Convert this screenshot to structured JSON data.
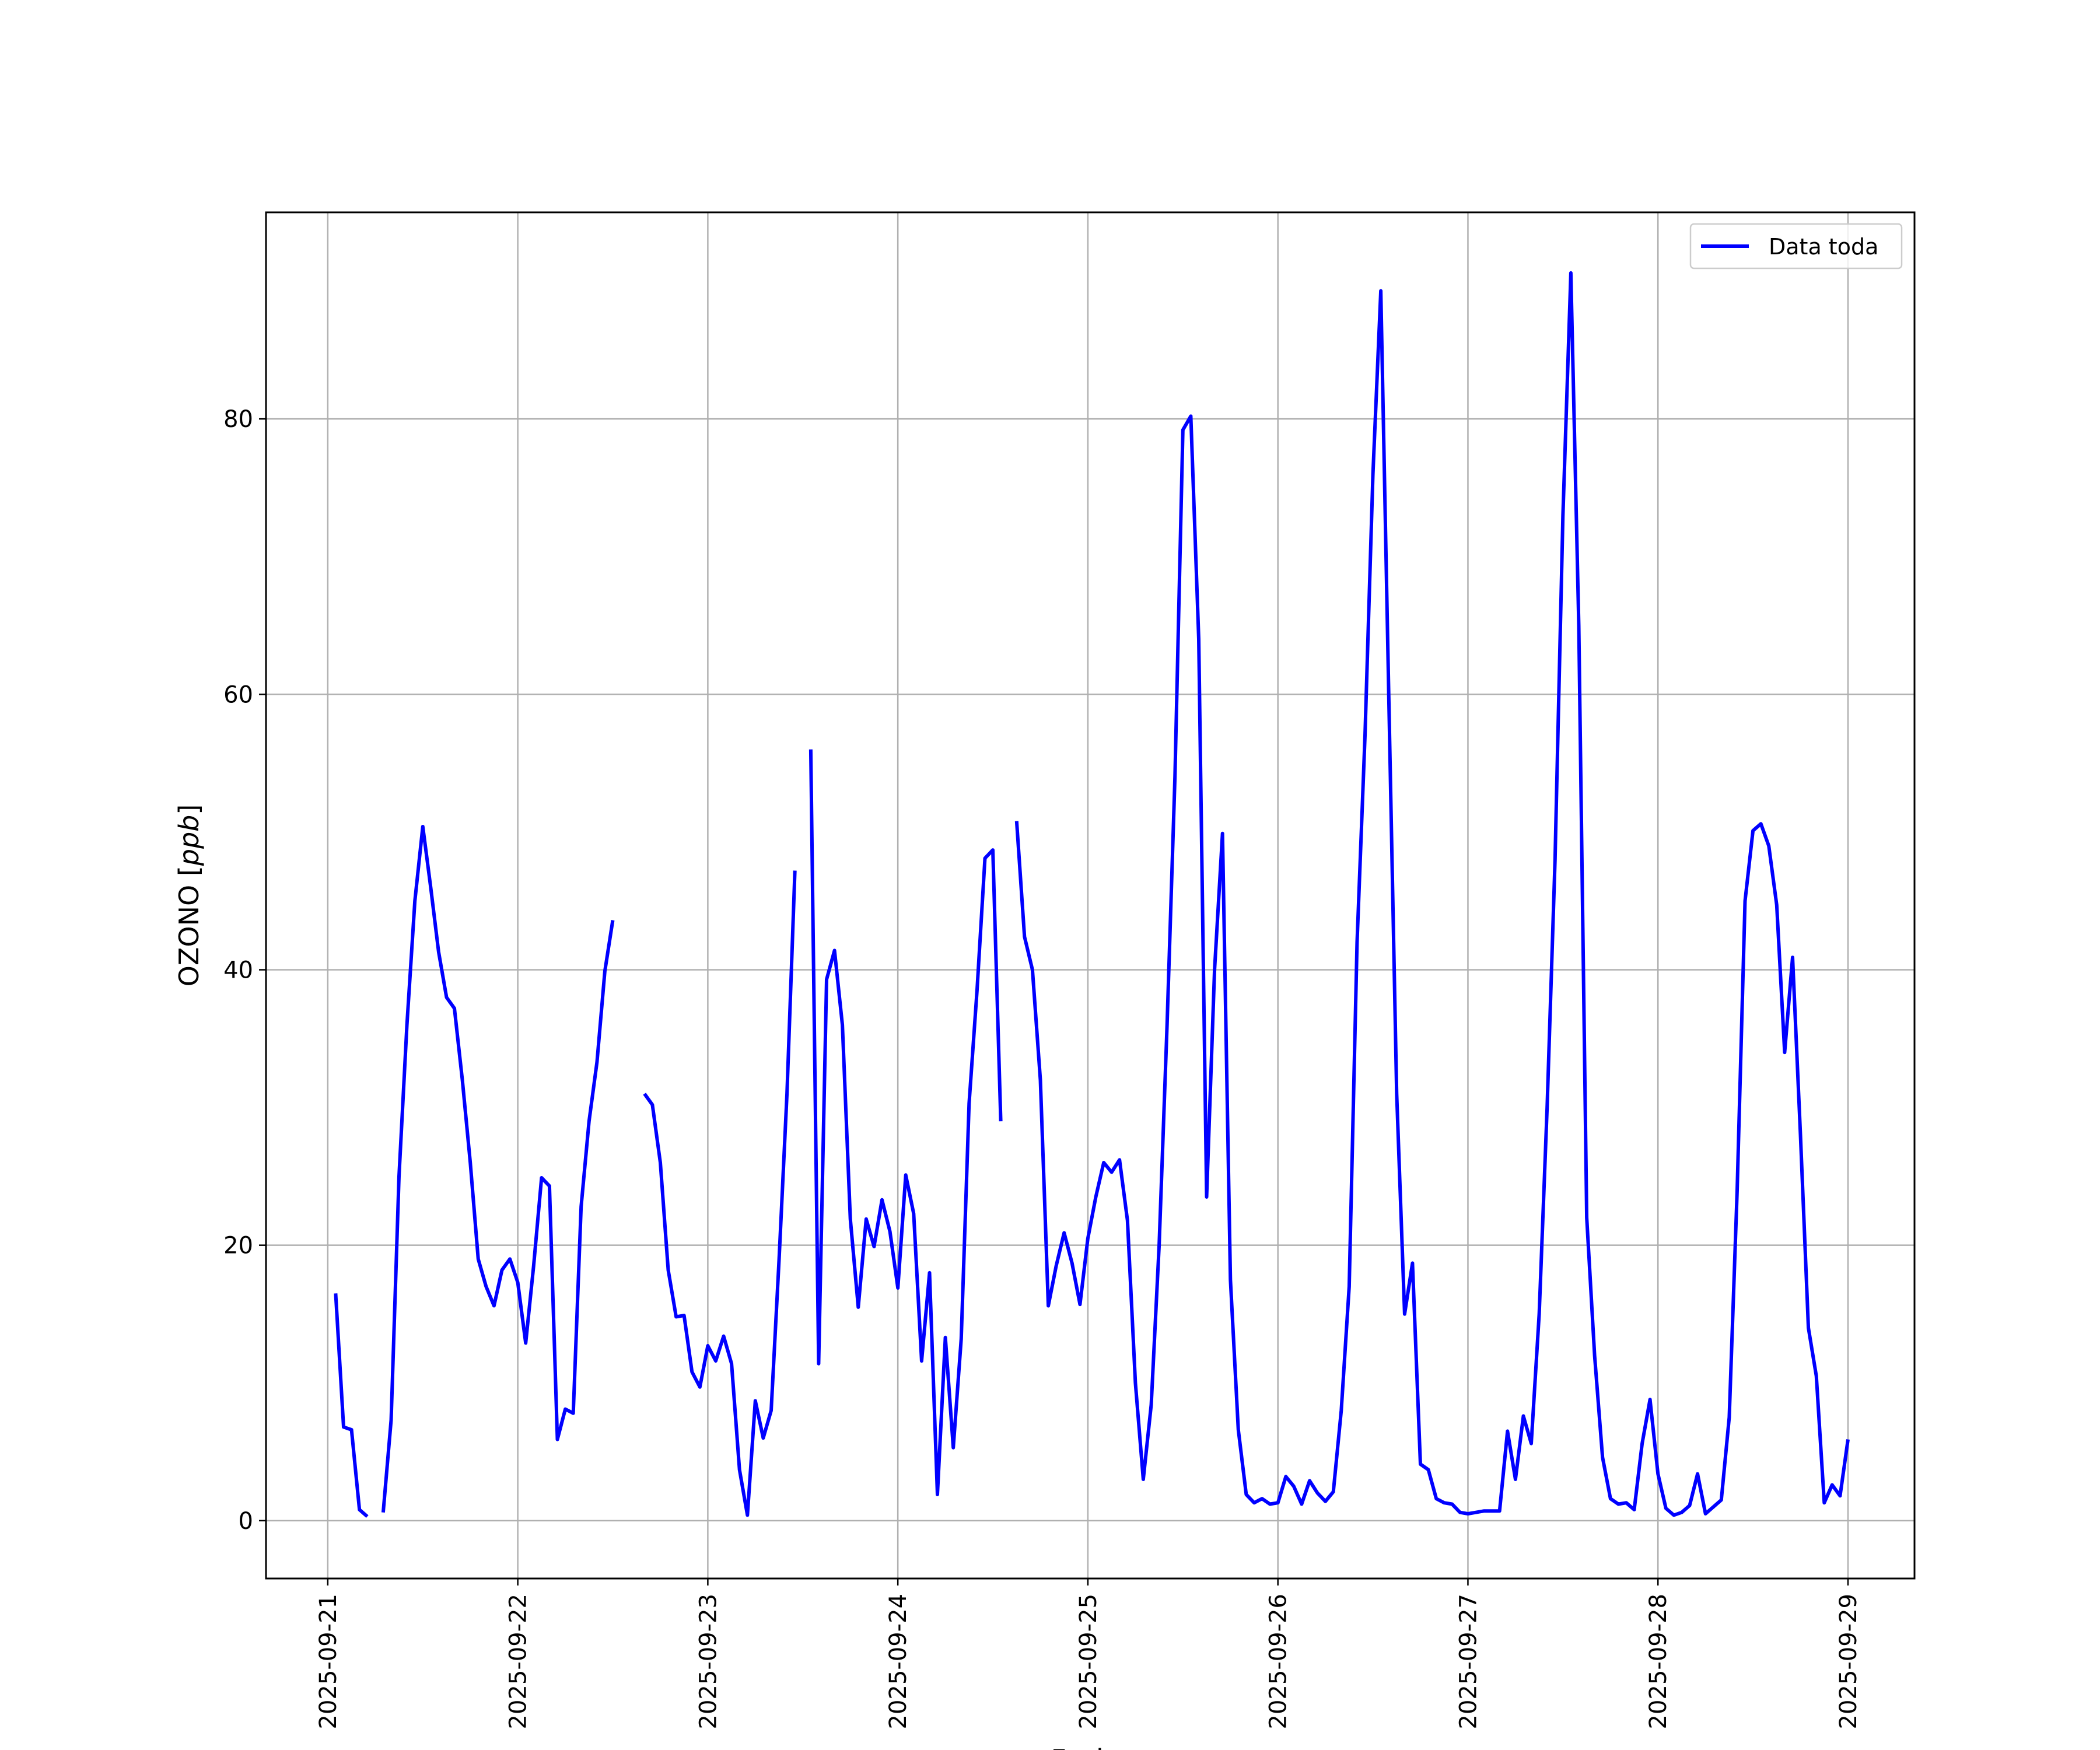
{
  "chart_data": {
    "type": "line",
    "title": "",
    "xlabel": "Fecha",
    "ylabel": "OZONO [ppb]",
    "ylabel_text": "OZONO",
    "ylabel_unit": "ppb",
    "grid": true,
    "legend_position": "top-right",
    "xlim": [
      "2025-09-20 16:12",
      "2025-09-29 08:24"
    ],
    "ylim": [
      -4.2,
      95.0
    ],
    "x_ticks": [
      "2025-09-21",
      "2025-09-22",
      "2025-09-23",
      "2025-09-24",
      "2025-09-25",
      "2025-09-26",
      "2025-09-27",
      "2025-09-28",
      "2025-09-29"
    ],
    "y_ticks": [
      0,
      20,
      40,
      60,
      80
    ],
    "series": [
      {
        "name": "Data toda",
        "color": "#0000ff",
        "points": [
          [
            "2025-09-21 01:00",
            16.5
          ],
          [
            "2025-09-21 02:00",
            6.8
          ],
          [
            "2025-09-21 03:00",
            6.6
          ],
          [
            "2025-09-21 04:00",
            0.8
          ],
          [
            "2025-09-21 05:00",
            0.3
          ],
          [
            "2025-09-21 07:00",
            0.6
          ],
          [
            "2025-09-21 08:00",
            7.3
          ],
          [
            "2025-09-21 09:00",
            25.0
          ],
          [
            "2025-09-21 10:00",
            36.0
          ],
          [
            "2025-09-21 11:00",
            45.0
          ],
          [
            "2025-09-21 12:00",
            50.4
          ],
          [
            "2025-09-21 13:00",
            46.0
          ],
          [
            "2025-09-21 14:00",
            41.3
          ],
          [
            "2025-09-21 15:00",
            38.0
          ],
          [
            "2025-09-21 16:00",
            37.2
          ],
          [
            "2025-09-21 17:00",
            32.0
          ],
          [
            "2025-09-21 18:00",
            26.0
          ],
          [
            "2025-09-21 19:00",
            19.0
          ],
          [
            "2025-09-21 20:00",
            17.0
          ],
          [
            "2025-09-21 21:00",
            15.6
          ],
          [
            "2025-09-21 22:00",
            18.2
          ],
          [
            "2025-09-21 23:00",
            19.0
          ],
          [
            "2025-09-22 00:00",
            17.3
          ],
          [
            "2025-09-22 01:00",
            12.9
          ],
          [
            "2025-09-22 02:00",
            18.5
          ],
          [
            "2025-09-22 03:00",
            24.9
          ],
          [
            "2025-09-22 04:00",
            24.3
          ],
          [
            "2025-09-22 05:00",
            5.9
          ],
          [
            "2025-09-22 06:00",
            8.1
          ],
          [
            "2025-09-22 07:00",
            7.8
          ],
          [
            "2025-09-22 08:00",
            22.8
          ],
          [
            "2025-09-22 09:00",
            29.0
          ],
          [
            "2025-09-22 10:00",
            33.3
          ],
          [
            "2025-09-22 11:00",
            39.9
          ],
          [
            "2025-09-22 12:00",
            43.6
          ],
          [
            "2025-09-22 16:00",
            31.0
          ],
          [
            "2025-09-22 17:00",
            30.2
          ],
          [
            "2025-09-22 18:00",
            26.0
          ],
          [
            "2025-09-22 19:00",
            18.2
          ],
          [
            "2025-09-22 20:00",
            14.8
          ],
          [
            "2025-09-22 21:00",
            14.9
          ],
          [
            "2025-09-22 22:00",
            10.8
          ],
          [
            "2025-09-22 23:00",
            9.7
          ],
          [
            "2025-09-23 00:00",
            12.7
          ],
          [
            "2025-09-23 01:00",
            11.6
          ],
          [
            "2025-09-23 02:00",
            13.4
          ],
          [
            "2025-09-23 03:00",
            11.4
          ],
          [
            "2025-09-23 04:00",
            3.7
          ],
          [
            "2025-09-23 05:00",
            0.4
          ],
          [
            "2025-09-23 06:00",
            8.7
          ],
          [
            "2025-09-23 07:00",
            6.0
          ],
          [
            "2025-09-23 08:00",
            8.0
          ],
          [
            "2025-09-23 09:00",
            19.0
          ],
          [
            "2025-09-23 10:00",
            31.0
          ],
          [
            "2025-09-23 11:00",
            47.2
          ],
          [
            "2025-09-23 13:00",
            56.0
          ],
          [
            "2025-09-23 14:00",
            11.4
          ],
          [
            "2025-09-23 15:00",
            39.3
          ],
          [
            "2025-09-23 16:00",
            41.4
          ],
          [
            "2025-09-23 17:00",
            36.0
          ],
          [
            "2025-09-23 18:00",
            21.9
          ],
          [
            "2025-09-23 19:00",
            15.5
          ],
          [
            "2025-09-23 20:00",
            21.9
          ],
          [
            "2025-09-23 21:00",
            19.9
          ],
          [
            "2025-09-23 22:00",
            23.3
          ],
          [
            "2025-09-23 23:00",
            21.0
          ],
          [
            "2025-09-24 00:00",
            16.9
          ],
          [
            "2025-09-24 01:00",
            25.1
          ],
          [
            "2025-09-24 02:00",
            22.3
          ],
          [
            "2025-09-24 03:00",
            11.6
          ],
          [
            "2025-09-24 04:00",
            18.0
          ],
          [
            "2025-09-24 05:00",
            1.9
          ],
          [
            "2025-09-24 06:00",
            13.3
          ],
          [
            "2025-09-24 07:00",
            5.3
          ],
          [
            "2025-09-24 08:00",
            13.2
          ],
          [
            "2025-09-24 09:00",
            30.3
          ],
          [
            "2025-09-24 10:00",
            38.5
          ],
          [
            "2025-09-24 11:00",
            48.1
          ],
          [
            "2025-09-24 12:00",
            48.7
          ],
          [
            "2025-09-24 13:00",
            29.0
          ],
          [
            "2025-09-24 15:00",
            50.8
          ],
          [
            "2025-09-24 16:00",
            42.4
          ],
          [
            "2025-09-24 17:00",
            40.0
          ],
          [
            "2025-09-24 18:00",
            32.0
          ],
          [
            "2025-09-24 19:00",
            15.6
          ],
          [
            "2025-09-24 20:00",
            18.5
          ],
          [
            "2025-09-24 21:00",
            20.9
          ],
          [
            "2025-09-24 22:00",
            18.7
          ],
          [
            "2025-09-24 23:00",
            15.7
          ],
          [
            "2025-09-25 00:00",
            20.5
          ],
          [
            "2025-09-25 01:00",
            23.5
          ],
          [
            "2025-09-25 02:00",
            26.0
          ],
          [
            "2025-09-25 03:00",
            25.3
          ],
          [
            "2025-09-25 04:00",
            26.2
          ],
          [
            "2025-09-25 05:00",
            21.8
          ],
          [
            "2025-09-25 06:00",
            10.0
          ],
          [
            "2025-09-25 07:00",
            3.0
          ],
          [
            "2025-09-25 08:00",
            8.4
          ],
          [
            "2025-09-25 09:00",
            20.0
          ],
          [
            "2025-09-25 10:00",
            36.0
          ],
          [
            "2025-09-25 11:00",
            54.0
          ],
          [
            "2025-09-25 12:00",
            79.2
          ],
          [
            "2025-09-25 13:00",
            80.2
          ],
          [
            "2025-09-25 14:00",
            64.0
          ],
          [
            "2025-09-25 15:00",
            23.5
          ],
          [
            "2025-09-25 16:00",
            40.0
          ],
          [
            "2025-09-25 17:00",
            49.9
          ],
          [
            "2025-09-25 18:00",
            17.5
          ],
          [
            "2025-09-25 19:00",
            6.6
          ],
          [
            "2025-09-25 20:00",
            1.9
          ],
          [
            "2025-09-25 21:00",
            1.3
          ],
          [
            "2025-09-25 22:00",
            1.6
          ],
          [
            "2025-09-25 23:00",
            1.2
          ],
          [
            "2025-09-26 00:00",
            1.3
          ],
          [
            "2025-09-26 01:00",
            3.2
          ],
          [
            "2025-09-26 02:00",
            2.5
          ],
          [
            "2025-09-26 03:00",
            1.2
          ],
          [
            "2025-09-26 04:00",
            2.9
          ],
          [
            "2025-09-26 05:00",
            2.0
          ],
          [
            "2025-09-26 06:00",
            1.4
          ],
          [
            "2025-09-26 07:00",
            2.1
          ],
          [
            "2025-09-26 08:00",
            8.0
          ],
          [
            "2025-09-26 09:00",
            17.0
          ],
          [
            "2025-09-26 10:00",
            42.0
          ],
          [
            "2025-09-26 11:00",
            57.0
          ],
          [
            "2025-09-26 12:00",
            76.0
          ],
          [
            "2025-09-26 13:00",
            89.3
          ],
          [
            "2025-09-26 14:00",
            60.0
          ],
          [
            "2025-09-26 15:00",
            31.0
          ],
          [
            "2025-09-26 16:00",
            15.0
          ],
          [
            "2025-09-26 17:00",
            18.7
          ],
          [
            "2025-09-26 18:00",
            4.1
          ],
          [
            "2025-09-26 19:00",
            3.7
          ],
          [
            "2025-09-26 20:00",
            1.6
          ],
          [
            "2025-09-26 21:00",
            1.3
          ],
          [
            "2025-09-26 22:00",
            1.2
          ],
          [
            "2025-09-26 23:00",
            0.6
          ],
          [
            "2025-09-27 00:00",
            0.5
          ],
          [
            "2025-09-27 01:00",
            0.6
          ],
          [
            "2025-09-27 02:00",
            0.7
          ],
          [
            "2025-09-27 03:00",
            0.7
          ],
          [
            "2025-09-27 04:00",
            0.7
          ],
          [
            "2025-09-27 05:00",
            6.5
          ],
          [
            "2025-09-27 06:00",
            3.0
          ],
          [
            "2025-09-27 07:00",
            7.6
          ],
          [
            "2025-09-27 08:00",
            5.6
          ],
          [
            "2025-09-27 09:00",
            15.0
          ],
          [
            "2025-09-27 10:00",
            30.0
          ],
          [
            "2025-09-27 11:00",
            48.0
          ],
          [
            "2025-09-27 12:00",
            73.0
          ],
          [
            "2025-09-27 13:00",
            90.6
          ],
          [
            "2025-09-27 14:00",
            65.0
          ],
          [
            "2025-09-27 15:00",
            22.0
          ],
          [
            "2025-09-27 16:00",
            12.0
          ],
          [
            "2025-09-27 17:00",
            4.6
          ],
          [
            "2025-09-27 18:00",
            1.6
          ],
          [
            "2025-09-27 19:00",
            1.2
          ],
          [
            "2025-09-27 20:00",
            1.3
          ],
          [
            "2025-09-27 21:00",
            0.8
          ],
          [
            "2025-09-27 22:00",
            5.6
          ],
          [
            "2025-09-27 23:00",
            8.8
          ],
          [
            "2025-09-28 00:00",
            3.4
          ],
          [
            "2025-09-28 01:00",
            0.9
          ],
          [
            "2025-09-28 02:00",
            0.4
          ],
          [
            "2025-09-28 03:00",
            0.6
          ],
          [
            "2025-09-28 04:00",
            1.1
          ],
          [
            "2025-09-28 05:00",
            3.4
          ],
          [
            "2025-09-28 06:00",
            0.5
          ],
          [
            "2025-09-28 07:00",
            1.0
          ],
          [
            "2025-09-28 08:00",
            1.5
          ],
          [
            "2025-09-28 09:00",
            7.5
          ],
          [
            "2025-09-28 10:00",
            24.0
          ],
          [
            "2025-09-28 11:00",
            45.0
          ],
          [
            "2025-09-28 12:00",
            50.1
          ],
          [
            "2025-09-28 13:00",
            50.6
          ],
          [
            "2025-09-28 14:00",
            49.0
          ],
          [
            "2025-09-28 15:00",
            44.7
          ],
          [
            "2025-09-28 16:00",
            34.0
          ],
          [
            "2025-09-28 17:00",
            40.9
          ],
          [
            "2025-09-28 18:00",
            28.0
          ],
          [
            "2025-09-28 19:00",
            14.0
          ],
          [
            "2025-09-28 20:00",
            10.5
          ],
          [
            "2025-09-28 21:00",
            1.3
          ],
          [
            "2025-09-28 22:00",
            2.6
          ],
          [
            "2025-09-28 23:00",
            1.8
          ],
          [
            "2025-09-29 00:00",
            5.9
          ]
        ]
      }
    ]
  }
}
